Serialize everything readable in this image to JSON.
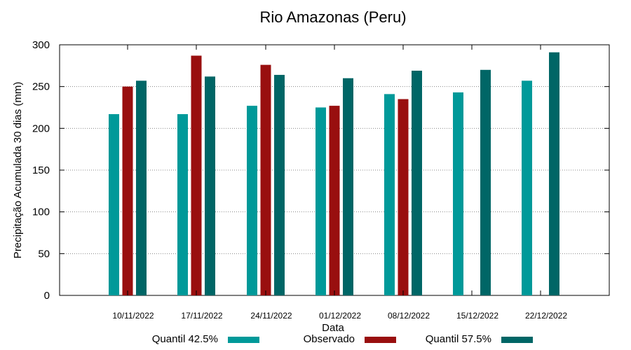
{
  "chart_data": {
    "type": "bar",
    "title": "Rio Amazonas (Peru)",
    "xlabel": "Data",
    "ylabel": "Precipitação Acumulada 30 dias (mm)",
    "ylim": [
      0,
      300
    ],
    "yticks": [
      "0",
      "50",
      "100",
      "150",
      "200",
      "250",
      "300"
    ],
    "grid": true,
    "categories": [
      "10/11/2022",
      "17/11/2022",
      "24/11/2022",
      "01/12/2022",
      "08/12/2022",
      "15/12/2022",
      "22/12/2022"
    ],
    "series": [
      {
        "name": "Quantil 42.5%",
        "color": "#009999",
        "values": [
          217,
          217,
          227,
          225,
          241,
          243,
          257
        ]
      },
      {
        "name": "Observado",
        "color": "#990f0f",
        "values": [
          250,
          287,
          276,
          227,
          235,
          null,
          null
        ]
      },
      {
        "name": "Quantil 57.5%",
        "color": "#006666",
        "values": [
          257,
          262,
          264,
          260,
          269,
          270,
          291
        ]
      }
    ],
    "legend_position": "bottom"
  }
}
